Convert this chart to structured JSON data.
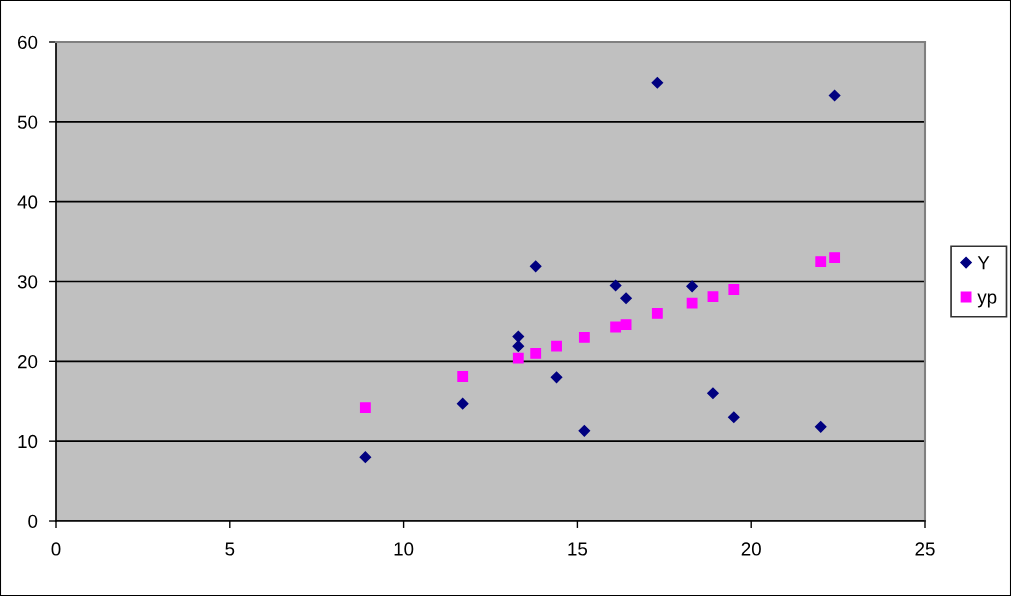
{
  "chart_data": {
    "type": "scatter",
    "xlim": [
      0,
      25
    ],
    "xticks": [
      0,
      5,
      10,
      15,
      20,
      25
    ],
    "ylim": [
      0,
      60
    ],
    "yticks": [
      0,
      10,
      20,
      30,
      40,
      50,
      60
    ],
    "grid": "y",
    "legend": "right",
    "series": [
      {
        "name": "Y",
        "color": "#000080",
        "marker": "diamond",
        "x": [
          8.9,
          11.7,
          13.3,
          13.3,
          13.8,
          14.4,
          15.2,
          16.1,
          16.4,
          17.3,
          18.3,
          18.9,
          19.5,
          22.0,
          22.4
        ],
        "values": [
          8.0,
          14.7,
          23.1,
          21.9,
          31.9,
          18.0,
          11.3,
          29.5,
          27.9,
          54.9,
          29.4,
          16.0,
          13.0,
          11.8,
          53.3
        ]
      },
      {
        "name": "yp",
        "color": "#ff00ff",
        "marker": "square",
        "x": [
          8.9,
          11.7,
          13.3,
          13.8,
          14.4,
          15.2,
          16.1,
          16.4,
          17.3,
          18.3,
          18.9,
          19.5,
          22.0,
          22.4
        ],
        "values": [
          14.2,
          18.1,
          20.4,
          21.0,
          21.9,
          23.0,
          24.3,
          24.6,
          26.0,
          27.3,
          28.1,
          29.0,
          32.5,
          33.0
        ]
      }
    ]
  }
}
